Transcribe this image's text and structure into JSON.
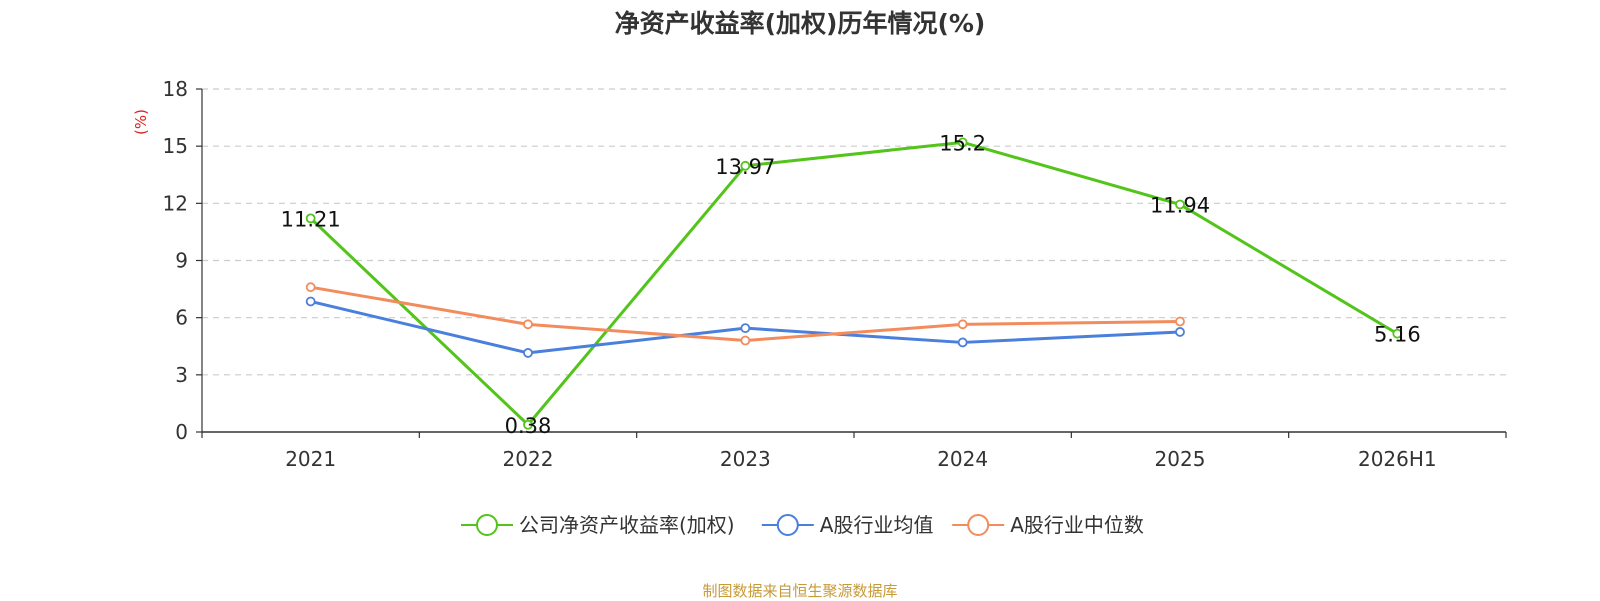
{
  "chart_data": {
    "type": "line",
    "title": "净资产收益率(加权)历年情况(%)",
    "ylabel": "(%)",
    "xlabel": "",
    "categories": [
      "2021",
      "2022",
      "2023",
      "2024",
      "2025",
      "2026H1"
    ],
    "ylim": [
      0,
      18
    ],
    "yticks": [
      0,
      3,
      6,
      9,
      12,
      15,
      18
    ],
    "grid": "horizontal-dashed",
    "legend_position": "bottom",
    "series": [
      {
        "name": "公司净资产收益率(加权)",
        "color": "#52c41a",
        "values": [
          11.21,
          0.38,
          13.97,
          15.2,
          11.94,
          5.16
        ],
        "labels": [
          "11.21",
          "0.38",
          "13.97",
          "15.2",
          "11.94",
          "5.16"
        ]
      },
      {
        "name": "A股行业均值",
        "color": "#4a7fdc",
        "values": [
          6.85,
          4.15,
          5.45,
          4.7,
          5.25,
          null
        ]
      },
      {
        "name": "A股行业中位数",
        "color": "#f28c5c",
        "values": [
          7.6,
          5.65,
          4.8,
          5.65,
          5.8,
          null
        ]
      }
    ],
    "ylabel_color": "#e02020"
  },
  "source_note": "制图数据来自恒生聚源数据库"
}
